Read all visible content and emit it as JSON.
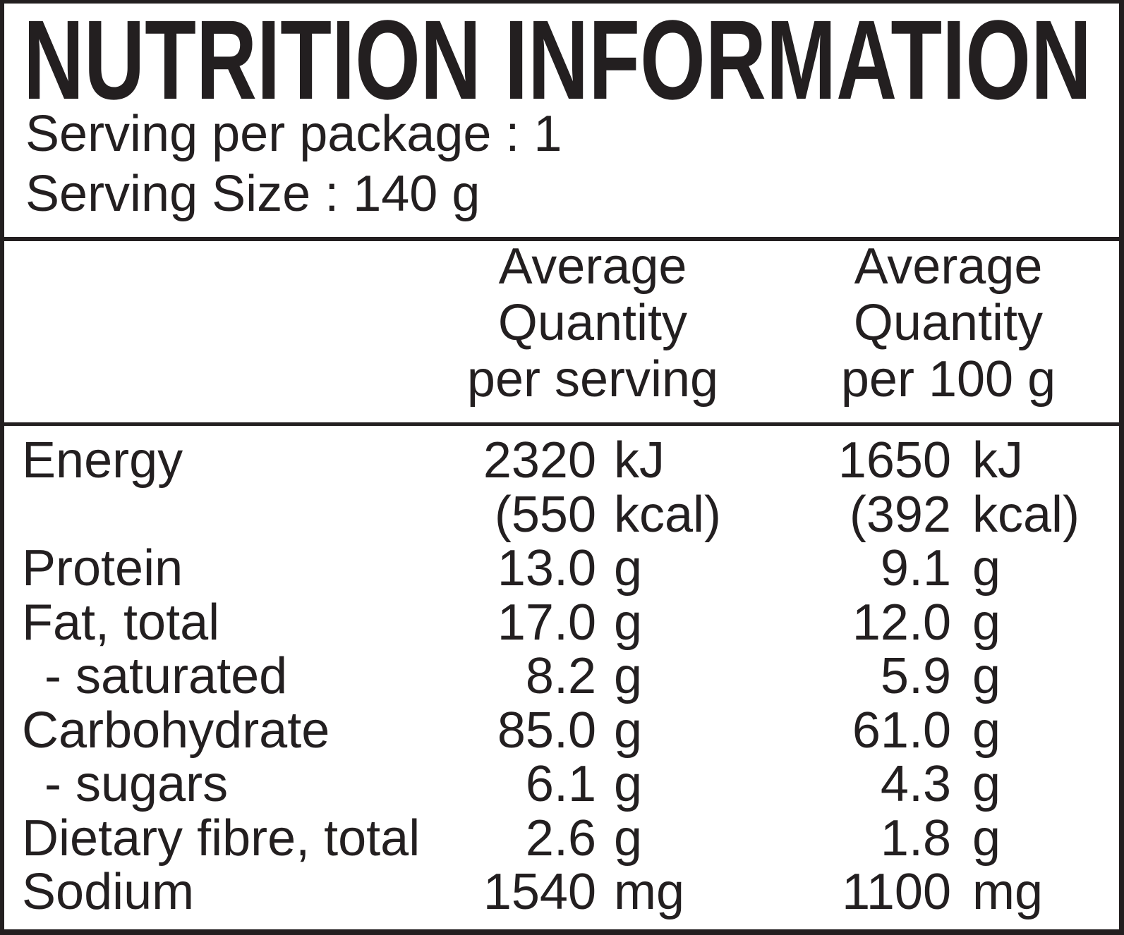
{
  "title": "NUTRITION INFORMATION",
  "serving_info": {
    "per_package": "Serving per package : 1",
    "size": "Serving Size : 140 g"
  },
  "column_headers": {
    "per_serving": {
      "line1": "Average",
      "line2": "Quantity",
      "line3": "per serving"
    },
    "per_100g": {
      "line1": "Average",
      "line2": "Quantity",
      "line3": "per 100 g"
    }
  },
  "rows": [
    {
      "label": "Energy",
      "serving_num": "2320",
      "serving_unit": "kJ",
      "per100_num": "1650",
      "per100_unit": "kJ"
    },
    {
      "label": "",
      "serving_num": "(550",
      "serving_unit": "kcal)",
      "per100_num": "(392",
      "per100_unit": "kcal)"
    },
    {
      "label": "Protein",
      "serving_num": "13.0",
      "serving_unit": "g",
      "per100_num": "9.1",
      "per100_unit": "g"
    },
    {
      "label": "Fat, total",
      "serving_num": "17.0",
      "serving_unit": "g",
      "per100_num": "12.0",
      "per100_unit": "g"
    },
    {
      "label": "- saturated",
      "serving_num": "8.2",
      "serving_unit": "g",
      "per100_num": "5.9",
      "per100_unit": "g"
    },
    {
      "label": "Carbohydrate",
      "serving_num": "85.0",
      "serving_unit": "g",
      "per100_num": "61.0",
      "per100_unit": "g"
    },
    {
      "label": "- sugars",
      "serving_num": "6.1",
      "serving_unit": "g",
      "per100_num": "4.3",
      "per100_unit": "g"
    },
    {
      "label": "Dietary fibre, total",
      "serving_num": "2.6",
      "serving_unit": "g",
      "per100_num": "1.8",
      "per100_unit": "g"
    },
    {
      "label": "Sodium",
      "serving_num": "1540",
      "serving_unit": "mg",
      "per100_num": "1100",
      "per100_unit": "mg"
    }
  ],
  "colors": {
    "ink": "#231f20",
    "background": "#ffffff"
  }
}
